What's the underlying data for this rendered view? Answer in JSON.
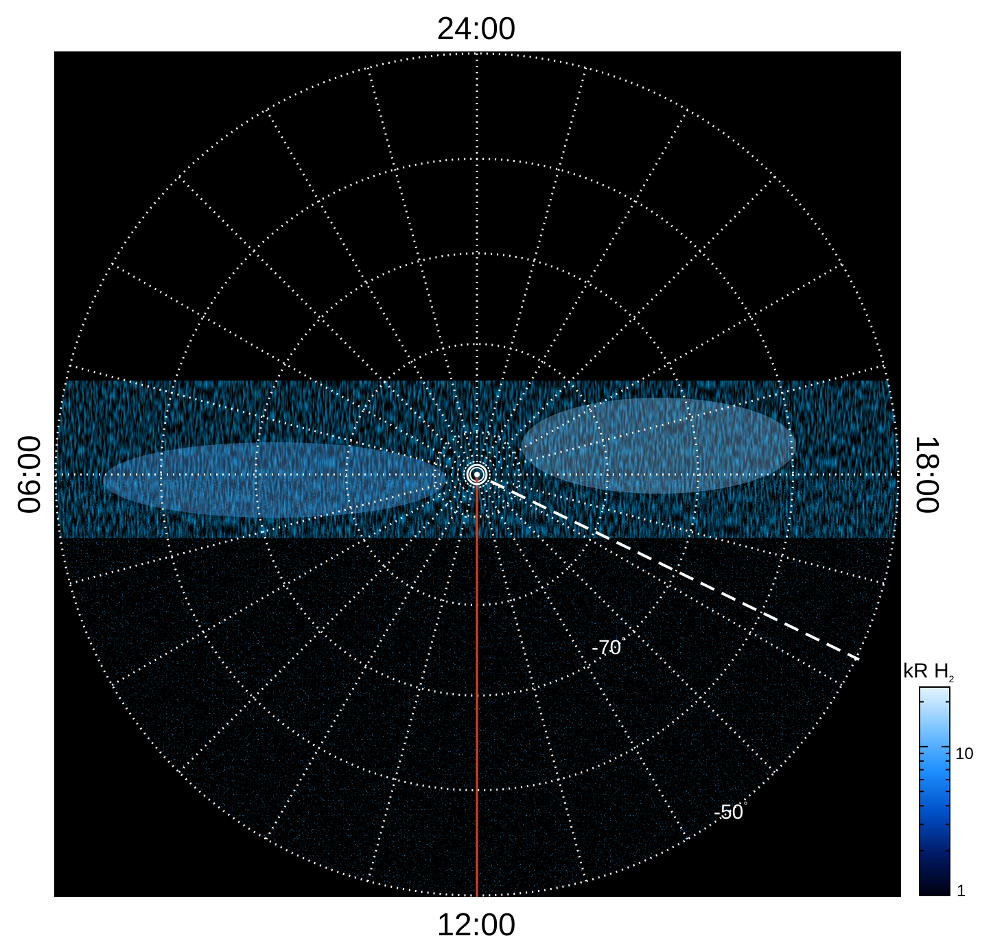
{
  "labels": {
    "top": "24:00",
    "bottom": "12:00",
    "left": "06:00",
    "right": "18:00"
  },
  "latitudes": [
    {
      "value": "-70",
      "degree": "°"
    },
    {
      "value": "-50",
      "degree": "°"
    }
  ],
  "colorbar": {
    "unit_main": "kR H",
    "unit_sub": "2",
    "ticks": [
      "10",
      "1"
    ],
    "colors": [
      "#000010",
      "#001a66",
      "#0050c8",
      "#1e90ff",
      "#7cc4ff",
      "#e6f4ff"
    ]
  },
  "colors": {
    "background": "#000000",
    "grid": "#ffffff",
    "meridian": "#e0401a"
  }
}
